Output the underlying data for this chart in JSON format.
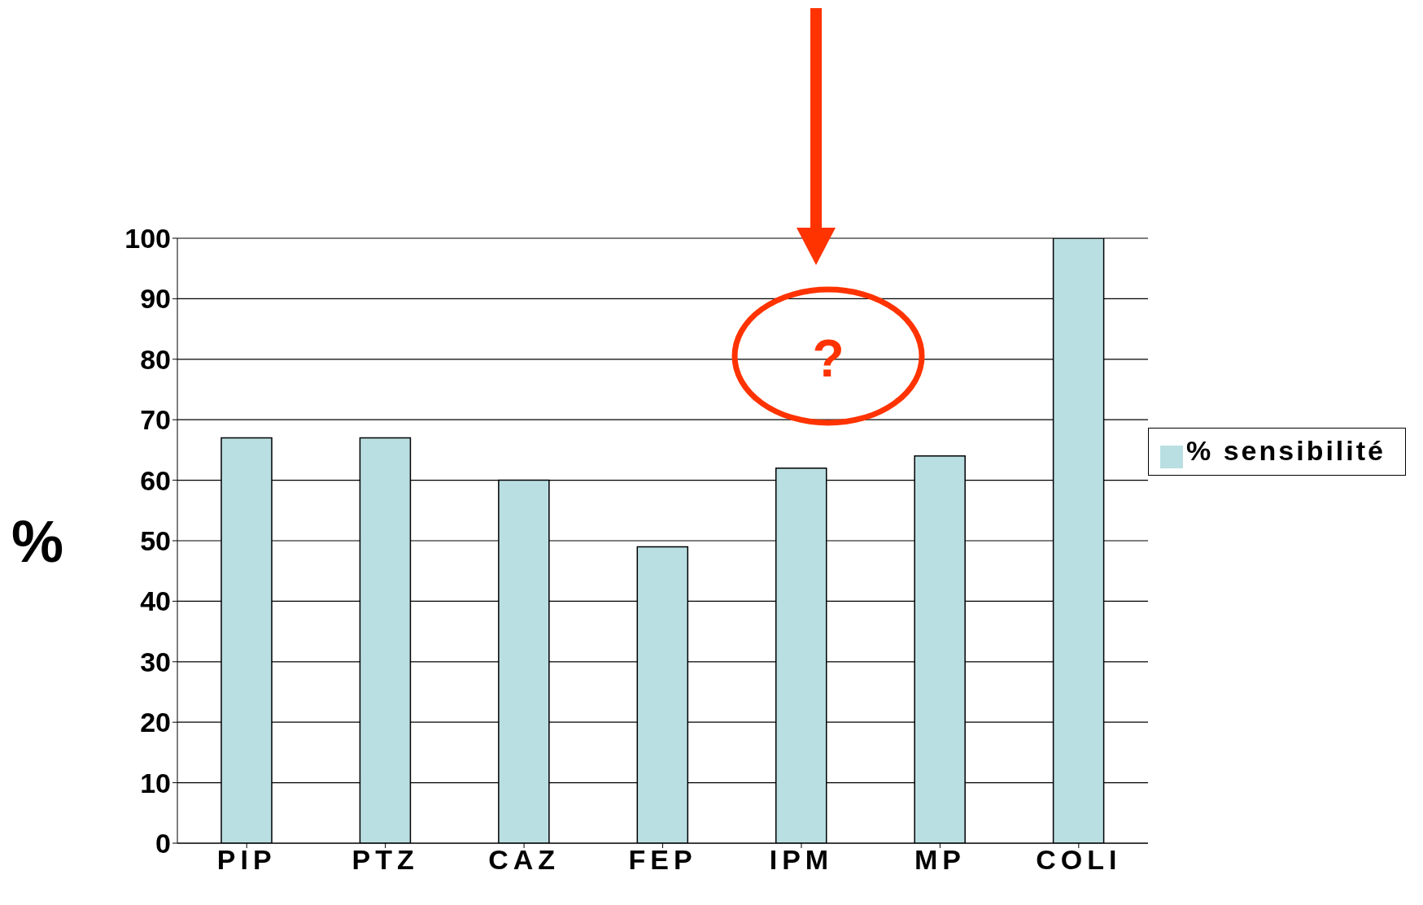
{
  "chart_data": {
    "type": "bar",
    "ylabel": "%",
    "categories": [
      "PIP",
      "PTZ",
      "CAZ",
      "FEP",
      "IPM",
      "MP",
      "COLI"
    ],
    "series": [
      {
        "name": "% sensibilité",
        "color": "#b9dfe2",
        "values": [
          67,
          67,
          60,
          49,
          62,
          64,
          100
        ]
      }
    ],
    "ylim": [
      0,
      100
    ],
    "yticks": [
      0,
      10,
      20,
      30,
      40,
      50,
      60,
      70,
      80,
      90,
      100
    ],
    "grid": "y",
    "legend": "right",
    "annotations": [
      "?"
    ]
  }
}
